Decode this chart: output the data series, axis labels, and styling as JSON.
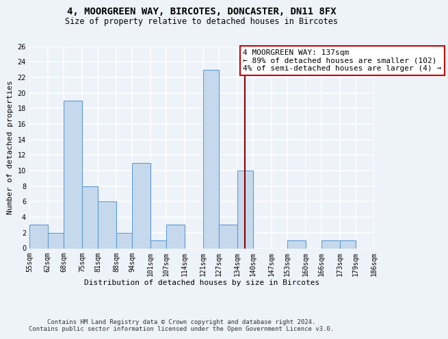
{
  "title": "4, MOORGREEN WAY, BIRCOTES, DONCASTER, DN11 8FX",
  "subtitle": "Size of property relative to detached houses in Bircotes",
  "xlabel": "Distribution of detached houses by size in Bircotes",
  "ylabel": "Number of detached properties",
  "bar_edges": [
    55,
    62,
    68,
    75,
    81,
    88,
    94,
    101,
    107,
    114,
    121,
    127,
    134,
    140,
    147,
    153,
    160,
    166,
    173,
    179,
    186
  ],
  "bar_heights": [
    3,
    2,
    19,
    8,
    6,
    2,
    11,
    1,
    3,
    0,
    23,
    3,
    10,
    0,
    0,
    1,
    0,
    1,
    1,
    0
  ],
  "bar_color": "#c6d9ec",
  "bar_edge_color": "#5b9bd5",
  "bg_color": "#eef2f9",
  "grid_color": "#ffffff",
  "vline_x": 137,
  "vline_color": "#8b0000",
  "annotation_box_color": "#cc0000",
  "annotation_lines": [
    "4 MOORGREEN WAY: 137sqm",
    "← 89% of detached houses are smaller (102)",
    "4% of semi-detached houses are larger (4) →"
  ],
  "ylim": [
    0,
    26
  ],
  "yticks": [
    0,
    2,
    4,
    6,
    8,
    10,
    12,
    14,
    16,
    18,
    20,
    22,
    24,
    26
  ],
  "xtick_labels": [
    "55sqm",
    "62sqm",
    "68sqm",
    "75sqm",
    "81sqm",
    "88sqm",
    "94sqm",
    "101sqm",
    "107sqm",
    "114sqm",
    "121sqm",
    "127sqm",
    "134sqm",
    "140sqm",
    "147sqm",
    "153sqm",
    "160sqm",
    "166sqm",
    "173sqm",
    "179sqm",
    "186sqm"
  ],
  "footer": "Contains HM Land Registry data © Crown copyright and database right 2024.\nContains public sector information licensed under the Open Government Licence v3.0.",
  "title_fontsize": 10,
  "subtitle_fontsize": 8.5,
  "axis_label_fontsize": 8,
  "tick_fontsize": 7,
  "annotation_fontsize": 8,
  "footer_fontsize": 6.5
}
